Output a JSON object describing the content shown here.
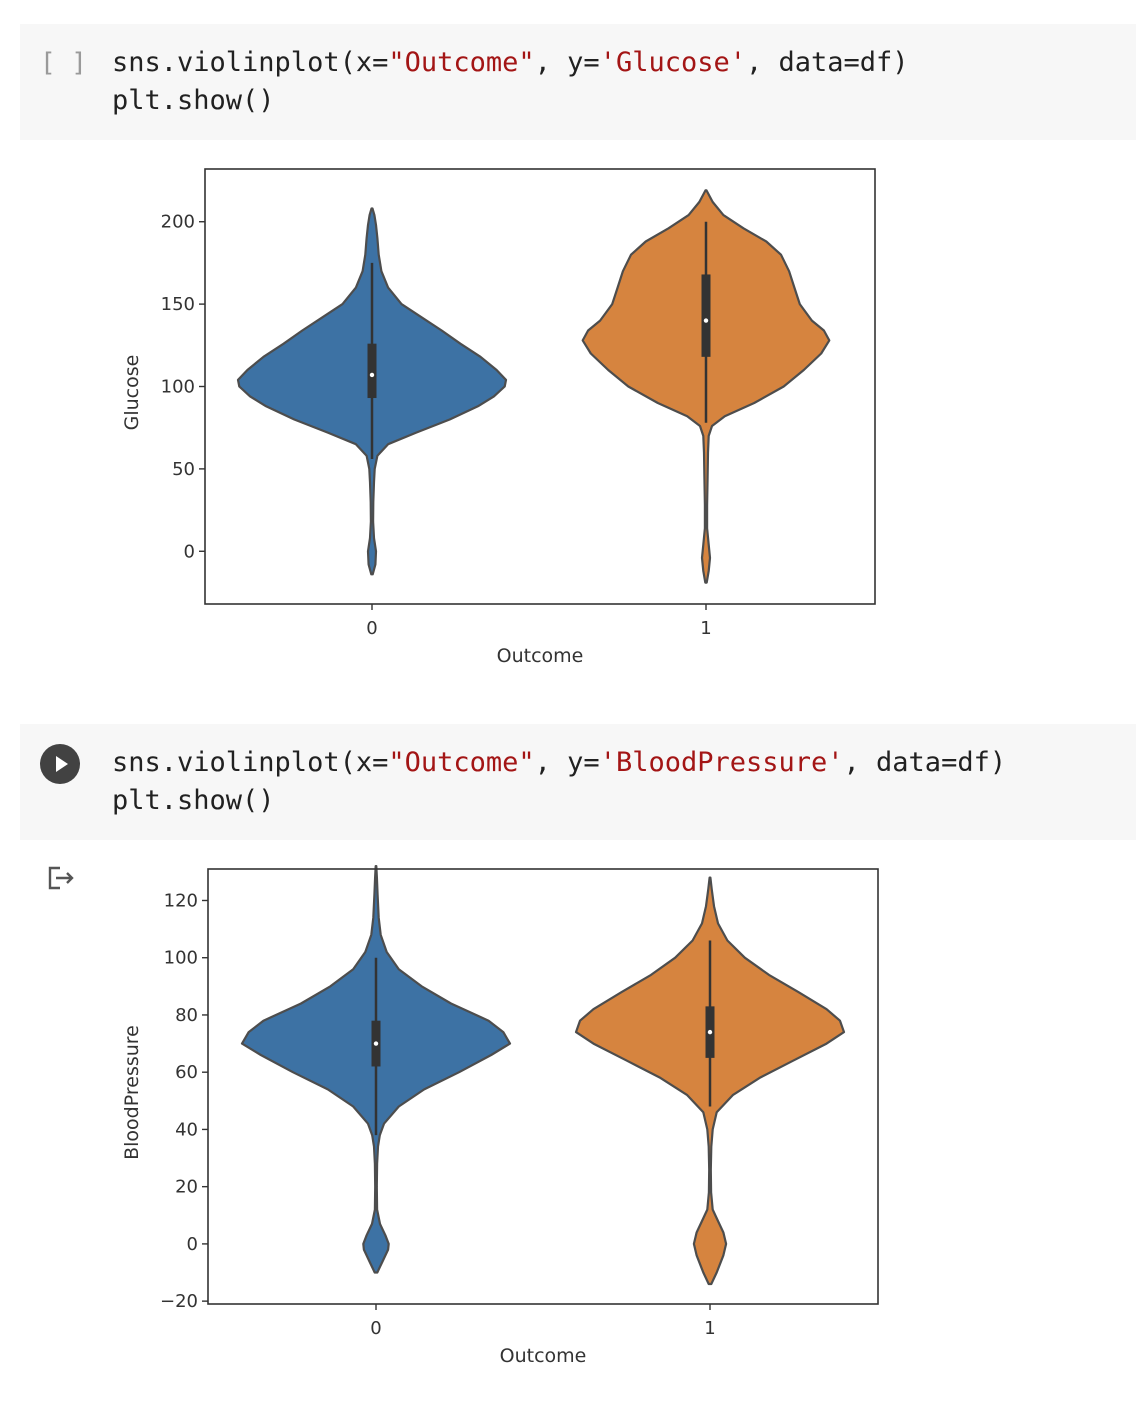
{
  "cells": [
    {
      "gutter": "[ ]",
      "code": {
        "line1_prefix": "sns.violinplot(x=",
        "line1_str1": "\"Outcome\"",
        "line1_mid": ", y=",
        "line1_str2": "'Glucose'",
        "line1_suffix": ", data=df)",
        "line2": "plt.show()"
      }
    },
    {
      "run_icon": "play-icon",
      "code": {
        "line1_prefix": "sns.violinplot(x=",
        "line1_str1": "\"Outcome\"",
        "line1_mid": ", y=",
        "line1_str2": "'BloodPressure'",
        "line1_suffix": ", data=df)",
        "line2": "plt.show()"
      },
      "output_icon": "output-arrow-icon"
    }
  ],
  "colors": {
    "blue": "#3d72a4",
    "orange": "#d6843f",
    "edge": "#4d4d4d",
    "box": "#333333"
  },
  "chart_data": [
    {
      "type": "violin",
      "xlabel": "Outcome",
      "ylabel": "Glucose",
      "categories": [
        "0",
        "1"
      ],
      "yticks": [
        0,
        50,
        100,
        150,
        200
      ],
      "ylim": [
        -32,
        232
      ],
      "violins": [
        {
          "category": "0",
          "color": "#3d72a4",
          "min": -14,
          "max": 208,
          "q1": 93,
          "median": 107,
          "q3": 126,
          "whisker_low": 56,
          "whisker_high": 175,
          "density": [
            [
              -14,
              0.005
            ],
            [
              -8,
              0.025
            ],
            [
              0,
              0.03
            ],
            [
              8,
              0.015
            ],
            [
              18,
              0.008
            ],
            [
              30,
              0.01
            ],
            [
              42,
              0.015
            ],
            [
              50,
              0.02
            ],
            [
              58,
              0.04
            ],
            [
              65,
              0.12
            ],
            [
              72,
              0.33
            ],
            [
              80,
              0.58
            ],
            [
              88,
              0.79
            ],
            [
              94,
              0.91
            ],
            [
              100,
              0.99
            ],
            [
              104,
              1.0
            ],
            [
              110,
              0.93
            ],
            [
              118,
              0.81
            ],
            [
              126,
              0.66
            ],
            [
              134,
              0.52
            ],
            [
              142,
              0.37
            ],
            [
              150,
              0.22
            ],
            [
              160,
              0.12
            ],
            [
              170,
              0.07
            ],
            [
              180,
              0.05
            ],
            [
              190,
              0.04
            ],
            [
              198,
              0.03
            ],
            [
              204,
              0.018
            ],
            [
              208,
              0.004
            ]
          ]
        },
        {
          "category": "1",
          "color": "#d6843f",
          "min": -19,
          "max": 219,
          "q1": 118,
          "median": 140,
          "q3": 168,
          "whisker_low": 78,
          "whisker_high": 200,
          "density": [
            [
              -19,
              0.005
            ],
            [
              -12,
              0.02
            ],
            [
              -4,
              0.03
            ],
            [
              4,
              0.02
            ],
            [
              14,
              0.008
            ],
            [
              28,
              0.008
            ],
            [
              45,
              0.012
            ],
            [
              60,
              0.015
            ],
            [
              70,
              0.02
            ],
            [
              76,
              0.045
            ],
            [
              82,
              0.14
            ],
            [
              90,
              0.36
            ],
            [
              100,
              0.58
            ],
            [
              110,
              0.73
            ],
            [
              120,
              0.86
            ],
            [
              128,
              0.92
            ],
            [
              134,
              0.88
            ],
            [
              140,
              0.79
            ],
            [
              150,
              0.7
            ],
            [
              160,
              0.66
            ],
            [
              170,
              0.62
            ],
            [
              180,
              0.56
            ],
            [
              188,
              0.45
            ],
            [
              196,
              0.28
            ],
            [
              204,
              0.13
            ],
            [
              212,
              0.05
            ],
            [
              219,
              0.004
            ]
          ]
        }
      ]
    },
    {
      "type": "violin",
      "xlabel": "Outcome",
      "ylabel": "BloodPressure",
      "categories": [
        "0",
        "1"
      ],
      "yticks": [
        -20,
        0,
        20,
        40,
        60,
        80,
        100,
        120
      ],
      "ylim": [
        -21,
        131
      ],
      "violins": [
        {
          "category": "0",
          "color": "#3d72a4",
          "min": -10,
          "max": 132,
          "q1": 62,
          "median": 70,
          "q3": 78,
          "whisker_low": 38,
          "whisker_high": 100,
          "density": [
            [
              -10,
              0.01
            ],
            [
              -6,
              0.05
            ],
            [
              -2,
              0.09
            ],
            [
              0,
              0.095
            ],
            [
              3,
              0.07
            ],
            [
              7,
              0.03
            ],
            [
              12,
              0.008
            ],
            [
              20,
              0.006
            ],
            [
              28,
              0.008
            ],
            [
              34,
              0.015
            ],
            [
              38,
              0.028
            ],
            [
              42,
              0.06
            ],
            [
              48,
              0.17
            ],
            [
              54,
              0.36
            ],
            [
              60,
              0.62
            ],
            [
              66,
              0.86
            ],
            [
              70,
              1.0
            ],
            [
              74,
              0.95
            ],
            [
              78,
              0.84
            ],
            [
              84,
              0.56
            ],
            [
              90,
              0.34
            ],
            [
              96,
              0.17
            ],
            [
              102,
              0.08
            ],
            [
              108,
              0.035
            ],
            [
              114,
              0.02
            ],
            [
              122,
              0.012
            ],
            [
              128,
              0.007
            ],
            [
              132,
              0.002
            ]
          ]
        },
        {
          "category": "1",
          "color": "#d6843f",
          "min": -14,
          "max": 128,
          "q1": 65,
          "median": 74,
          "q3": 83,
          "whisker_low": 48,
          "whisker_high": 106,
          "density": [
            [
              -14,
              0.01
            ],
            [
              -10,
              0.05
            ],
            [
              -4,
              0.1
            ],
            [
              0,
              0.12
            ],
            [
              4,
              0.1
            ],
            [
              8,
              0.06
            ],
            [
              12,
              0.02
            ],
            [
              18,
              0.008
            ],
            [
              26,
              0.006
            ],
            [
              34,
              0.01
            ],
            [
              40,
              0.02
            ],
            [
              46,
              0.05
            ],
            [
              52,
              0.17
            ],
            [
              58,
              0.37
            ],
            [
              64,
              0.62
            ],
            [
              70,
              0.87
            ],
            [
              74,
              1.0
            ],
            [
              78,
              0.97
            ],
            [
              82,
              0.87
            ],
            [
              88,
              0.66
            ],
            [
              94,
              0.44
            ],
            [
              100,
              0.26
            ],
            [
              106,
              0.13
            ],
            [
              112,
              0.06
            ],
            [
              118,
              0.03
            ],
            [
              124,
              0.013
            ],
            [
              128,
              0.003
            ]
          ]
        }
      ]
    }
  ]
}
